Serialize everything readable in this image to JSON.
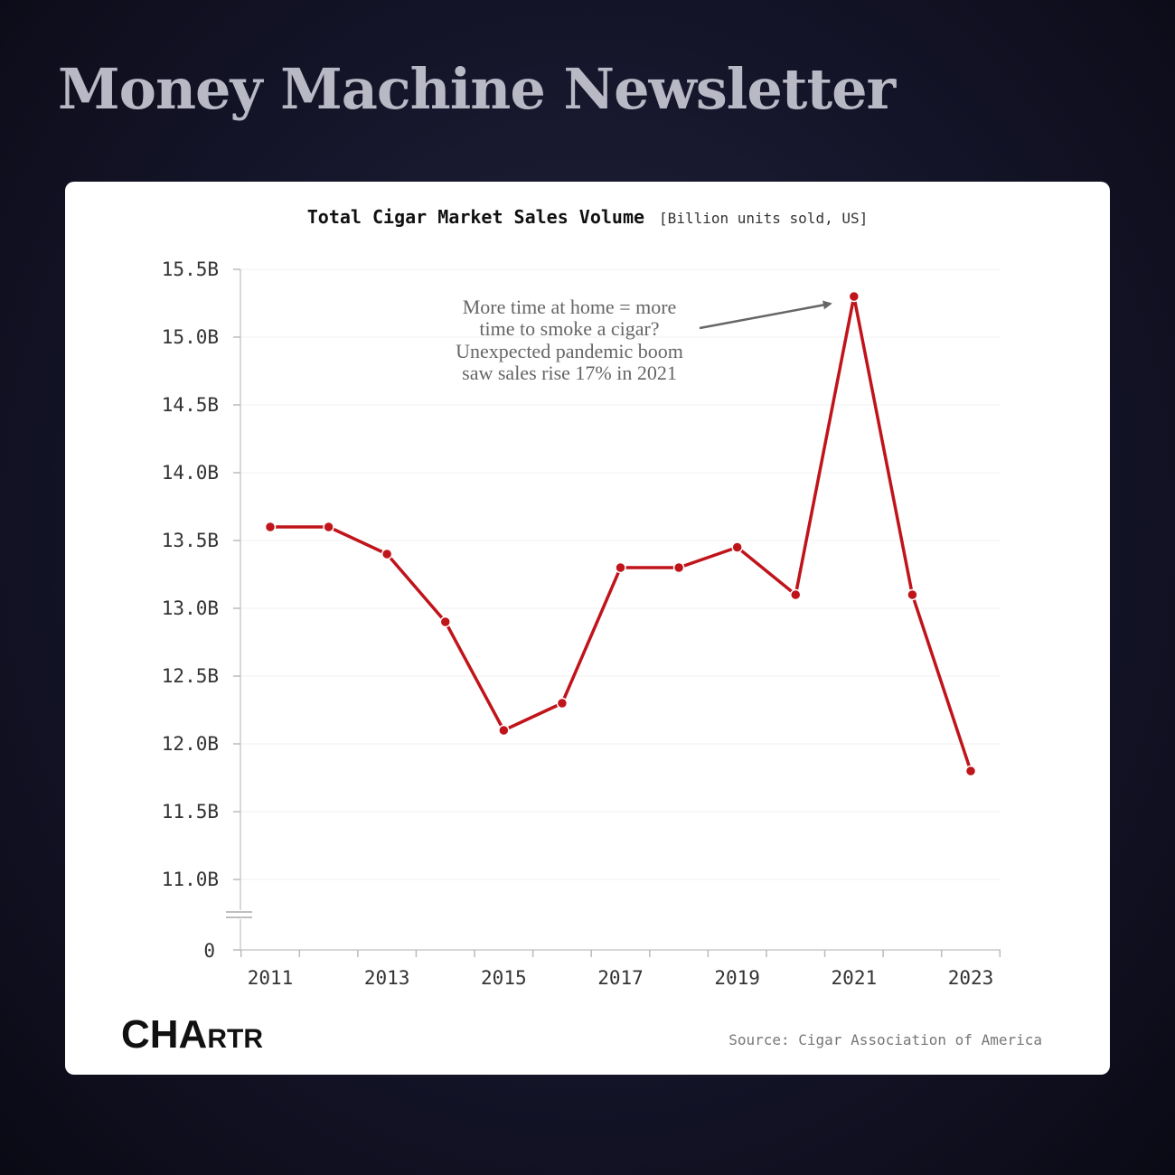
{
  "page": {
    "title": "Money Machine Newsletter"
  },
  "chart_data": {
    "type": "line",
    "title": "Total Cigar Market Sales Volume",
    "subtitle": "[Billion units sold, US]",
    "x": [
      2011,
      2012,
      2013,
      2014,
      2015,
      2016,
      2017,
      2018,
      2019,
      2020,
      2021,
      2022,
      2023
    ],
    "x_tick_labels": [
      "2011",
      "2013",
      "2015",
      "2017",
      "2019",
      "2021",
      "2023"
    ],
    "x_tick_values": [
      2011,
      2013,
      2015,
      2017,
      2019,
      2021,
      2023
    ],
    "series": [
      {
        "values": [
          13.6,
          13.6,
          13.4,
          12.9,
          12.1,
          12.3,
          13.3,
          13.3,
          13.45,
          13.1,
          15.3,
          13.1,
          11.8
        ]
      }
    ],
    "y_tick_values": [
      11.0,
      11.5,
      12.0,
      12.5,
      13.0,
      13.5,
      14.0,
      14.5,
      15.0,
      15.5
    ],
    "y_tick_labels": [
      "11.0B",
      "11.5B",
      "12.0B",
      "12.5B",
      "13.0B",
      "13.5B",
      "14.0B",
      "14.5B",
      "15.0B",
      "15.5B"
    ],
    "y_zero_label": "0",
    "ylim": [
      11.0,
      15.5
    ],
    "axis_break": true,
    "grid": true,
    "line_color": "#c0141b",
    "annotation": {
      "lines": [
        "More time at home = more",
        "time to smoke a cigar?",
        "Unexpected pandemic boom",
        "saw sales rise 17% in 2021"
      ],
      "target_year": 2021
    },
    "source": "Source: Cigar Association of America",
    "logo": "CHARTR"
  }
}
